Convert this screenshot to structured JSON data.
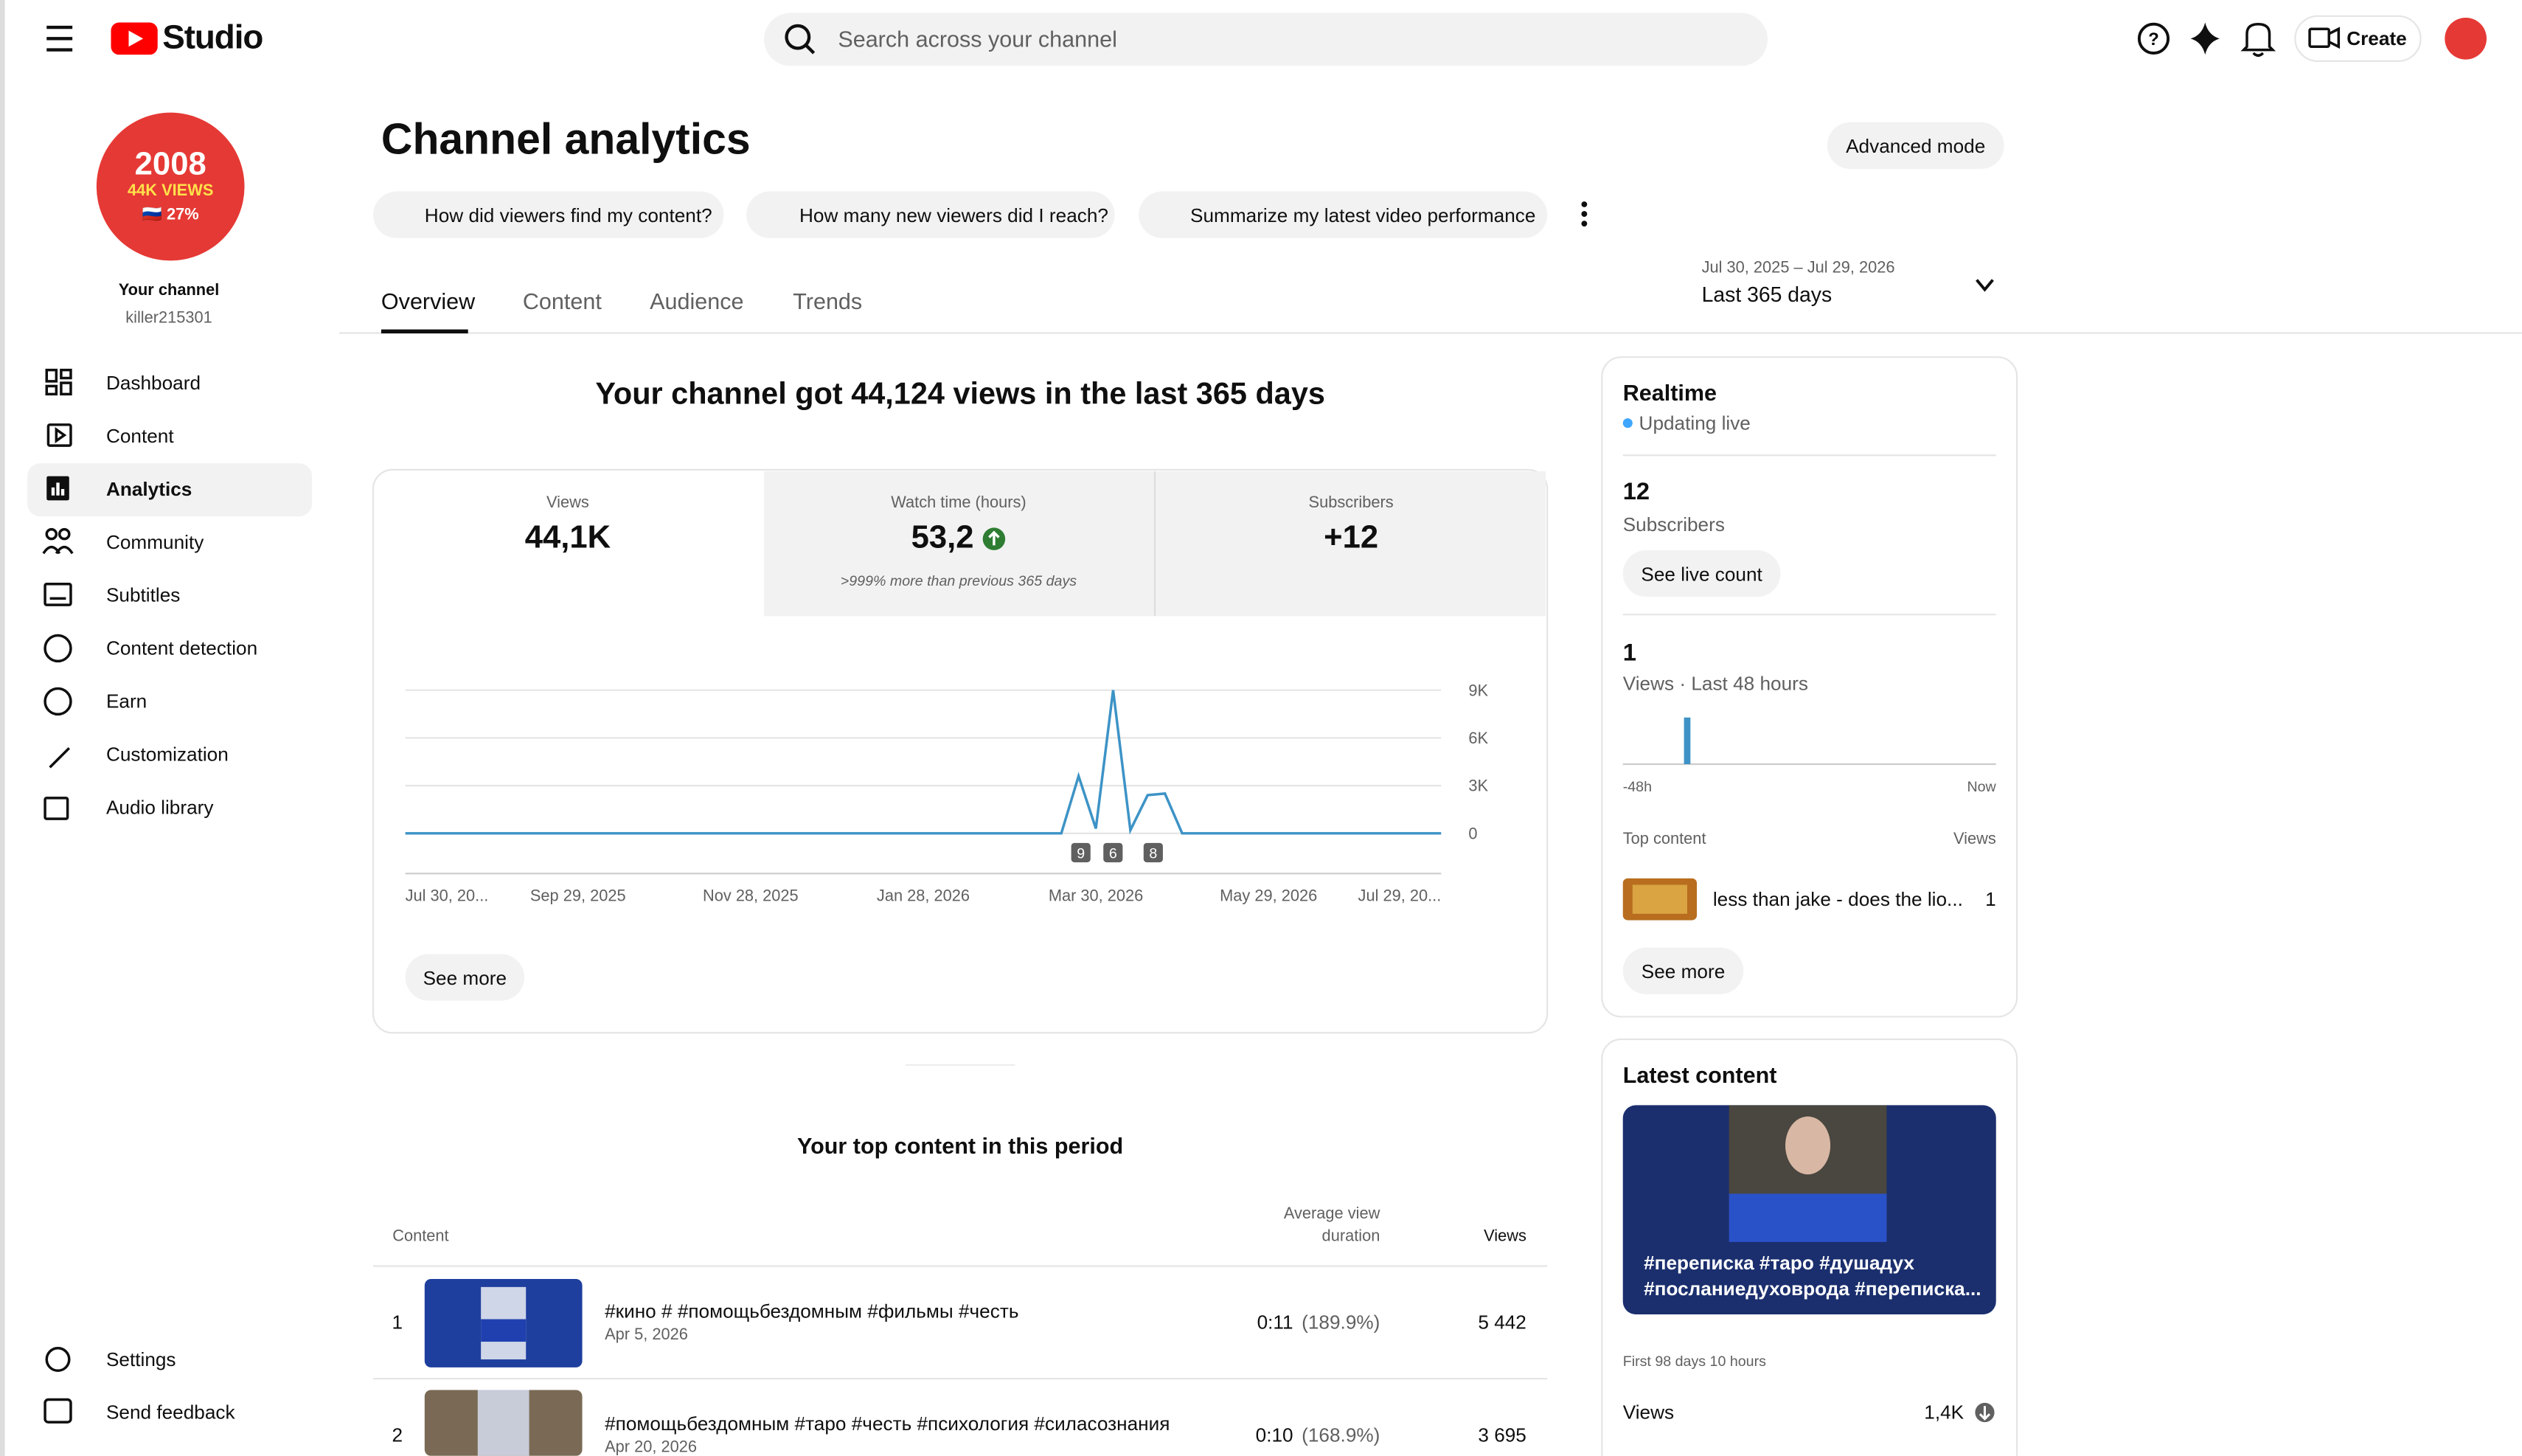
{
  "header": {
    "logo": "Studio",
    "search": "Search across your channel",
    "create": "Create"
  },
  "channel": {
    "avatar": [
      "2008",
      "44K VIEWS",
      "🇷🇺 27%"
    ],
    "name": "Your channel",
    "handle": "killer215301"
  },
  "nav": [
    "Dashboard",
    "Content",
    "Analytics",
    "Community",
    "Subtitles",
    "Content detection",
    "Earn",
    "Customization",
    "Audio library"
  ],
  "nav_active": 2,
  "nav_bottom": [
    "Settings",
    "Send feedback"
  ],
  "title": "Channel analytics",
  "advanced": "Advanced mode",
  "prompts": [
    "How did viewers find my content?",
    "How many new viewers did I reach?",
    "Summarize my latest video performance"
  ],
  "tabs": [
    "Overview",
    "Content",
    "Audience",
    "Trends"
  ],
  "tab_active": 0,
  "date_range": {
    "range": "Jul 30, 2025 – Jul 29, 2026",
    "label": "Last 365 days"
  },
  "headline": "Your channel got 44,124 views in the last 365 days",
  "metrics": [
    {
      "label": "Views",
      "value": "44,1K"
    },
    {
      "label": "Watch time (hours)",
      "value": "53,2",
      "note": ">999% more than previous 365 days"
    },
    {
      "label": "Subscribers",
      "value": "+12"
    }
  ],
  "chart_data": {
    "type": "line",
    "color": "#3d93c6",
    "categories": [
      "Jul 30, 20...",
      null,
      null,
      null,
      null,
      null,
      null,
      null,
      null,
      null,
      "Sep 29, 2025",
      null,
      null,
      null,
      null,
      null,
      null,
      null,
      null,
      null,
      "Nov 28, 2025",
      null,
      null,
      null,
      null,
      null,
      null,
      null,
      null,
      null,
      "Jan 28, 2026",
      null,
      null,
      null,
      null,
      null,
      null,
      null,
      null,
      null,
      "Mar 30, 2026",
      null,
      null,
      null,
      null,
      null,
      null,
      null,
      null,
      null,
      "May 29, 2026",
      null,
      null,
      null,
      null,
      null,
      null,
      null,
      null,
      null,
      "Jul 29, 20..."
    ],
    "values": [
      0,
      0,
      0,
      0,
      0,
      0,
      0,
      0,
      0,
      0,
      0,
      0,
      0,
      0,
      0,
      0,
      0,
      0,
      0,
      0,
      0,
      0,
      0,
      0,
      0,
      0,
      0,
      0,
      0,
      0,
      0,
      0,
      0,
      0,
      0,
      0,
      0,
      0,
      0,
      3600,
      300,
      9000,
      200,
      2400,
      2500,
      0,
      0,
      0,
      0,
      0,
      0,
      0,
      0,
      0,
      0,
      0,
      0,
      0,
      0,
      0,
      0
    ],
    "ylim": [
      0,
      9000
    ],
    "yticks": [
      0,
      {
        "value": 3000,
        "label": "3K"
      },
      {
        "value": 6000,
        "label": "6K"
      },
      {
        "value": 9000,
        "label": "9K"
      }
    ],
    "grid": true,
    "markers": [
      "9",
      "6",
      "8"
    ]
  },
  "see_more": "See more",
  "top_content": {
    "title": "Your top content in this period",
    "headers": [
      "Content",
      "Average view",
      "duration",
      "Views"
    ],
    "rows": [
      [
        "1",
        "#кино # #помощьбездомным #фильмы #честь",
        "Apr 5, 2026",
        "0:11",
        "(189.9%)",
        "5 442"
      ],
      [
        "2",
        "#помощьбездомным #таро #честь #психология #силасознания",
        "Apr 20, 2026",
        "0:10",
        "(168.9%)",
        "3 695"
      ]
    ]
  },
  "realtime": {
    "title": "Realtime",
    "status": "Updating live",
    "subs": "12",
    "subs_label": "Subscribers",
    "live": "See live count",
    "views": "1",
    "views_label": "Views · Last 48 hours",
    "start": "-48h",
    "end": "Now",
    "top": "Top content",
    "top_views": "Views",
    "item": "less than jake - does the lio...",
    "item_views": "1",
    "more": "See more"
  },
  "latest": {
    "title": "Latest content",
    "caption": [
      "#переписка #таро #душадух",
      "#посланиедуховрода #переписка..."
    ],
    "period": "First 98 days 10 hours",
    "metric": "Views",
    "value": "1,4K"
  }
}
